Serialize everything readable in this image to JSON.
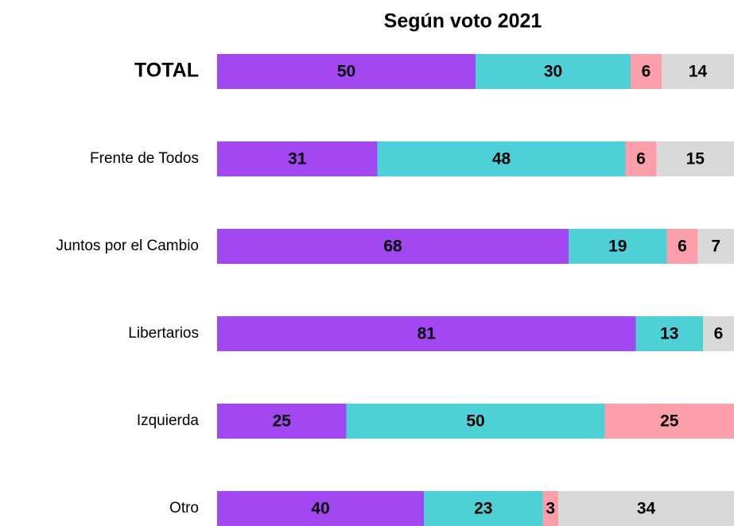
{
  "chart_data": {
    "type": "stacked-bar-horizontal",
    "title": "Según voto 2021",
    "categories": [
      "TOTAL",
      "Frente de Todos",
      "Juntos por el Cambio",
      "Libertarios",
      "Izquierda",
      "Otro"
    ],
    "series": [
      {
        "color": "#a347f2",
        "values": [
          50,
          31,
          68,
          81,
          25,
          40
        ]
      },
      {
        "color": "#4dd0d6",
        "values": [
          30,
          48,
          19,
          13,
          50,
          23
        ]
      },
      {
        "color": "#fd9fab",
        "values": [
          6,
          6,
          6,
          null,
          25,
          3
        ]
      },
      {
        "color": "#d9d9d9",
        "values": [
          14,
          15,
          7,
          6,
          null,
          34
        ]
      }
    ],
    "xlim": [
      0,
      100
    ]
  }
}
